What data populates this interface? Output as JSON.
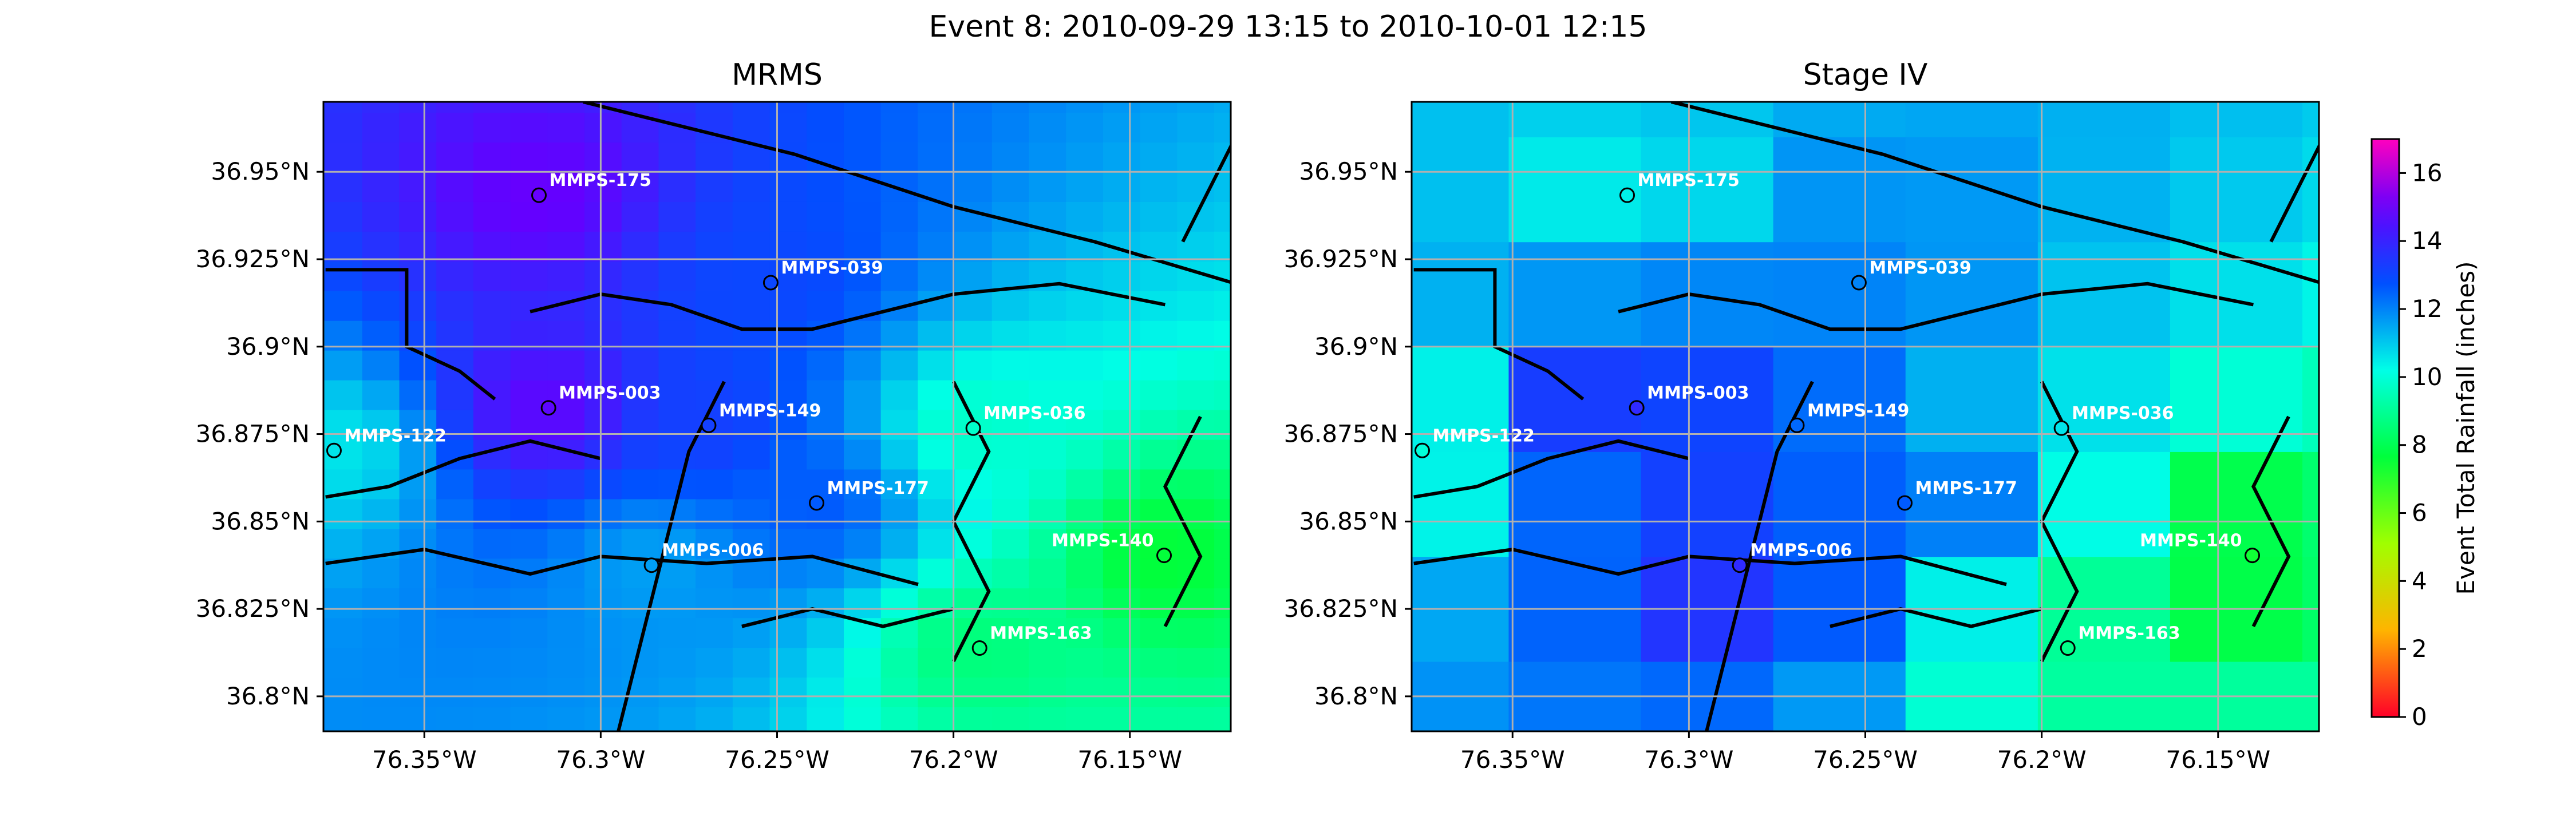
{
  "figure_title": "Event 8: 2010-09-29 13:15 to 2010-10-01 12:15",
  "chart_data": [
    {
      "type": "heatmap",
      "title": "MRMS",
      "xlim": [
        -76.3786,
        -76.1214
      ],
      "ylim": [
        36.79,
        36.97
      ],
      "x_ticks": [
        -76.35,
        -76.3,
        -76.25,
        -76.2,
        -76.15
      ],
      "x_tick_labels": [
        "76.35°W",
        "76.3°W",
        "76.25°W",
        "76.2°W",
        "76.15°W"
      ],
      "y_ticks": [
        36.8,
        36.825,
        36.85,
        36.875,
        36.9,
        36.925,
        36.95
      ],
      "y_tick_labels": [
        "36.8°N",
        "36.825°N",
        "36.85°N",
        "36.875°N",
        "36.9°N",
        "36.925°N",
        "36.95°N"
      ],
      "grid": true,
      "colormap": "gist_rainbow",
      "vmin": 0,
      "vmax": 17,
      "gauges": [
        {
          "name": "MMPS-175",
          "lon": -76.3175,
          "lat": 36.9433,
          "value": 15.0
        },
        {
          "name": "MMPS-039",
          "lon": -76.2518,
          "lat": 36.9183,
          "value": 13.0
        },
        {
          "name": "MMPS-003",
          "lon": -76.3148,
          "lat": 36.8825,
          "value": 14.8
        },
        {
          "name": "MMPS-149",
          "lon": -76.2694,
          "lat": 36.8775,
          "value": 13.2
        },
        {
          "name": "MMPS-122",
          "lon": -76.3756,
          "lat": 36.8703,
          "value": 10.6
        },
        {
          "name": "MMPS-036",
          "lon": -76.1944,
          "lat": 36.8767,
          "value": 9.8
        },
        {
          "name": "MMPS-177",
          "lon": -76.2388,
          "lat": 36.8553,
          "value": 12.6
        },
        {
          "name": "MMPS-006",
          "lon": -76.2856,
          "lat": 36.8375,
          "value": 11.6
        },
        {
          "name": "MMPS-140",
          "lon": -76.1403,
          "lat": 36.8403,
          "value": 7.6
        },
        {
          "name": "MMPS-163",
          "lon": -76.1926,
          "lat": 36.8138,
          "value": 8.6
        }
      ]
    },
    {
      "type": "heatmap",
      "title": "Stage IV",
      "xlim": [
        -76.3786,
        -76.1214
      ],
      "ylim": [
        36.79,
        36.97
      ],
      "x_ticks": [
        -76.35,
        -76.3,
        -76.25,
        -76.2,
        -76.15
      ],
      "x_tick_labels": [
        "76.35°W",
        "76.3°W",
        "76.25°W",
        "76.2°W",
        "76.15°W"
      ],
      "y_ticks": [
        36.8,
        36.825,
        36.85,
        36.875,
        36.9,
        36.925,
        36.95
      ],
      "y_tick_labels": [
        "36.8°N",
        "36.825°N",
        "36.85°N",
        "36.875°N",
        "36.9°N",
        "36.925°N",
        "36.95°N"
      ],
      "grid": true,
      "colormap": "gist_rainbow",
      "vmin": 0,
      "vmax": 17,
      "gauges": [
        {
          "name": "MMPS-175",
          "lon": -76.3175,
          "lat": 36.9433,
          "value": 10.4
        },
        {
          "name": "MMPS-039",
          "lon": -76.2518,
          "lat": 36.9183,
          "value": 12.0
        },
        {
          "name": "MMPS-003",
          "lon": -76.3148,
          "lat": 36.8825,
          "value": 13.8
        },
        {
          "name": "MMPS-149",
          "lon": -76.2694,
          "lat": 36.8775,
          "value": 12.4
        },
        {
          "name": "MMPS-122",
          "lon": -76.3756,
          "lat": 36.8703,
          "value": 10.0
        },
        {
          "name": "MMPS-036",
          "lon": -76.1944,
          "lat": 36.8767,
          "value": 10.6
        },
        {
          "name": "MMPS-177",
          "lon": -76.2388,
          "lat": 36.8553,
          "value": 12.6
        },
        {
          "name": "MMPS-006",
          "lon": -76.2856,
          "lat": 36.8375,
          "value": 13.8
        },
        {
          "name": "MMPS-140",
          "lon": -76.1403,
          "lat": 36.8403,
          "value": 7.4
        },
        {
          "name": "MMPS-163",
          "lon": -76.1926,
          "lat": 36.8138,
          "value": 8.8
        }
      ]
    }
  ],
  "colorbar": {
    "label": "Event Total Rainfall (inches)",
    "ticks": [
      0,
      2,
      4,
      6,
      8,
      10,
      12,
      14,
      16
    ],
    "vmin": 0,
    "vmax": 17
  }
}
